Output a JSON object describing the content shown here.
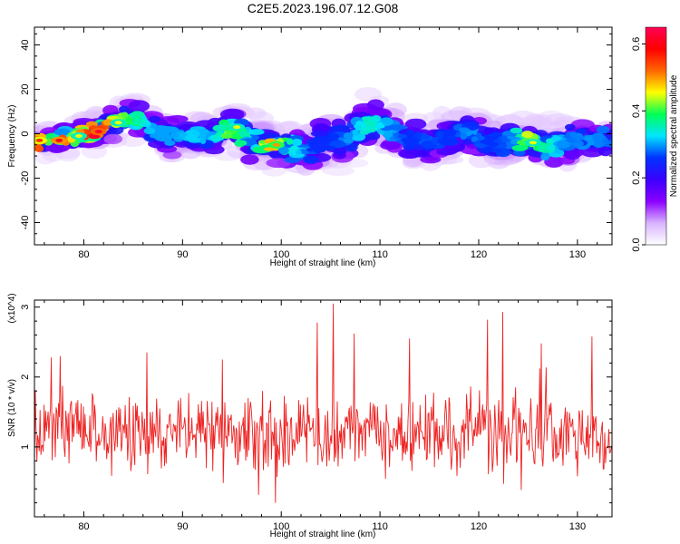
{
  "figure": {
    "title": "C2E5.2023.196.07.12.G08"
  },
  "chart_data": [
    {
      "type": "heatmap",
      "xlabel": "Height of straight line (km)",
      "ylabel": "Frequency (Hz)",
      "xlim": [
        75,
        133.5
      ],
      "ylim": [
        -50,
        48
      ],
      "x_ticks": [
        80,
        90,
        100,
        110,
        120,
        130
      ],
      "y_ticks": [
        -40,
        -20,
        0,
        20,
        40
      ],
      "colorbar": {
        "label": "Normalized spectral amplitude",
        "range": [
          0,
          0.65
        ],
        "ticks": [
          0.0,
          0.2,
          0.4,
          0.6
        ],
        "colormap": [
          "#ffffff",
          "#d9b3ff",
          "#8a00ff",
          "#3a00ff",
          "#0033ff",
          "#00e5ff",
          "#00ff55",
          "#ffff00",
          "#ff6600",
          "#ff0000",
          "#ff0055"
        ]
      },
      "ridge": {
        "heights_km": [
          75,
          77,
          79,
          81,
          83,
          85,
          87,
          89,
          91,
          93,
          95,
          97,
          99,
          101,
          103,
          105,
          107,
          109,
          111,
          113,
          115,
          117,
          119,
          121,
          123,
          125,
          127,
          129,
          131,
          133
        ],
        "center_frequency_hz": [
          -3,
          -3,
          -1,
          1,
          5,
          7,
          2,
          -2,
          -1,
          -1,
          3,
          -3,
          -5,
          -6,
          -7,
          -3,
          -1,
          5,
          2,
          -3,
          -4,
          -1,
          1,
          -4,
          -3,
          -4,
          -5,
          -3,
          -2,
          -3
        ],
        "spread_hz": [
          4,
          4,
          4,
          5,
          5,
          6,
          5,
          6,
          6,
          6,
          6,
          7,
          7,
          7,
          8,
          8,
          7,
          7,
          7,
          7,
          6,
          6,
          6,
          7,
          6,
          6,
          6,
          6,
          5,
          5
        ],
        "peak_amplitude": [
          0.55,
          0.6,
          0.45,
          0.62,
          0.45,
          0.38,
          0.3,
          0.3,
          0.32,
          0.3,
          0.45,
          0.28,
          0.5,
          0.35,
          0.25,
          0.25,
          0.3,
          0.35,
          0.3,
          0.25,
          0.28,
          0.25,
          0.3,
          0.25,
          0.28,
          0.45,
          0.35,
          0.28,
          0.3,
          0.28
        ]
      }
    },
    {
      "type": "line",
      "xlabel": "Height of straight line (km)",
      "ylabel": "SNR (10 * v/v)",
      "y_multiplier": "(x10^4)",
      "xlim": [
        75,
        133.5
      ],
      "ylim": [
        0,
        3.1
      ],
      "x_ticks": [
        80,
        90,
        100,
        110,
        120,
        130
      ],
      "y_ticks": [
        1,
        2,
        3
      ],
      "color": "#ee2222",
      "x_range": [
        75,
        133.5
      ],
      "n_points": 720,
      "baseline": 1.2,
      "typical_range": [
        0.3,
        2.2
      ],
      "peaks": [
        {
          "x": 76.7,
          "y": 2.28
        },
        {
          "x": 86.4,
          "y": 2.35
        },
        {
          "x": 94.0,
          "y": 2.25
        },
        {
          "x": 103.6,
          "y": 2.78
        },
        {
          "x": 105.3,
          "y": 3.05
        },
        {
          "x": 107.4,
          "y": 2.62
        },
        {
          "x": 113.0,
          "y": 2.55
        },
        {
          "x": 120.9,
          "y": 2.82
        },
        {
          "x": 122.4,
          "y": 2.93
        },
        {
          "x": 126.3,
          "y": 2.48
        },
        {
          "x": 131.5,
          "y": 2.58
        }
      ]
    }
  ]
}
